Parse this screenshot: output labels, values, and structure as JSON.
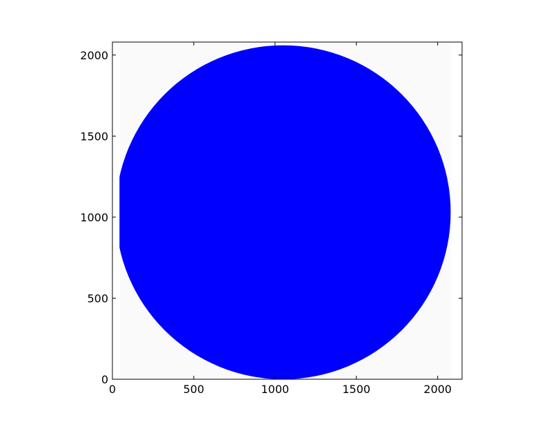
{
  "chart_data": {
    "type": "image",
    "title": "",
    "xlabel": "",
    "ylabel": "",
    "xlim": [
      0,
      2150
    ],
    "ylim": [
      0,
      2080
    ],
    "xticks": [
      0,
      500,
      1000,
      1500,
      2000
    ],
    "yticks": [
      0,
      500,
      1000,
      1500,
      2000
    ],
    "xtick_labels": [
      "0",
      "500",
      "1000",
      "1500",
      "2000"
    ],
    "ytick_labels": [
      "0",
      "500",
      "1000",
      "1500",
      "2000"
    ],
    "grid": false,
    "legend": "none",
    "image_extent": {
      "x": [
        47,
        2080
      ],
      "y": [
        0,
        2080
      ]
    },
    "shape": {
      "kind": "filled-disk",
      "color": "#0000ff",
      "center": [
        1050,
        1030
      ],
      "radius": 1030,
      "flat_left_edge_x": 52,
      "flat_left_edge_y_range": [
        770,
        1340
      ]
    },
    "colors": {
      "background": "#fafafa",
      "fill": "#0000ff",
      "axes": "#000000"
    }
  }
}
